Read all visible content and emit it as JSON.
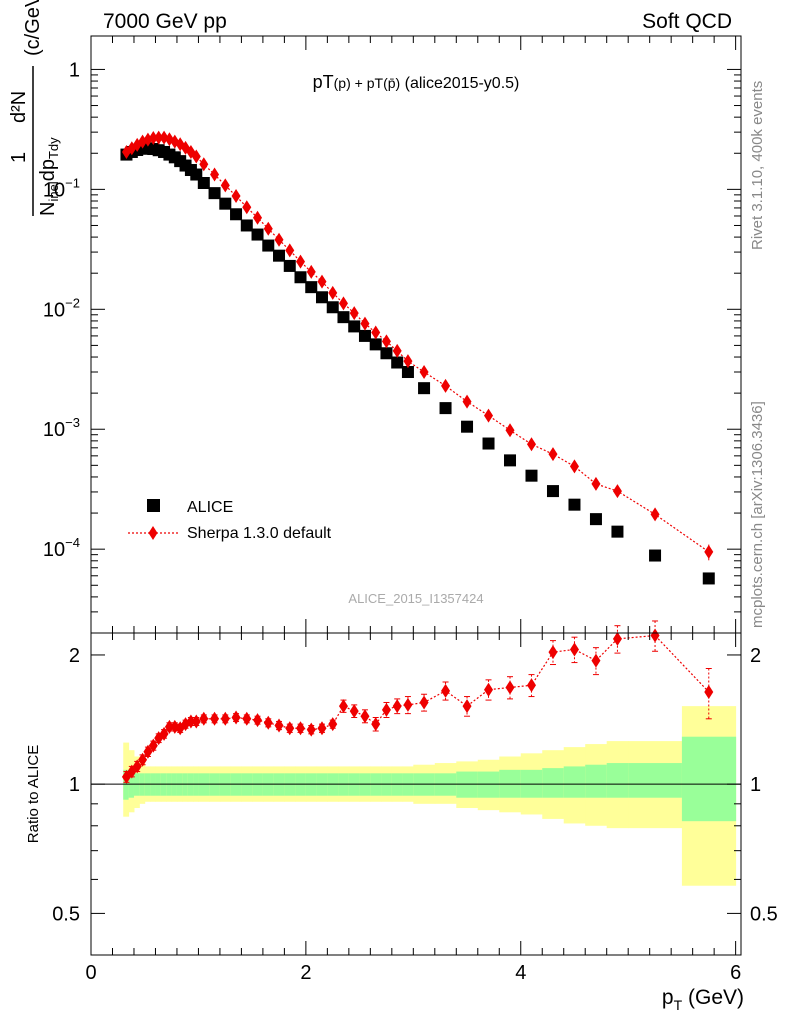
{
  "header": {
    "left": "7000 GeV pp",
    "right": "Soft QCD"
  },
  "side_labels": {
    "rivet": "Rivet 3.1.10,  400k events",
    "mcplots": "mcplots.cern.ch [arXiv:1306.3436]"
  },
  "chart_data": [
    {
      "type": "scatter",
      "title_main": "pT",
      "title_sub1": "(p)",
      "title_plus": " + pT",
      "title_sub2": "(p̄)",
      "title_tail": " (alice2015-y0.5)",
      "ylabel_frac_num": "1",
      "ylabel_frac_num2": "d²N",
      "ylabel_frac_den": "N",
      "ylabel_frac_den_sub": "inel",
      "ylabel_frac_den_tail": "dp",
      "ylabel_frac_den_tail_sub": "Tdy",
      "ylabel_unit": "(c/GeV)",
      "watermark": "ALICE_2015_I1357424",
      "xlim": [
        0,
        6.05
      ],
      "ylim": [
        2e-05,
        1.9
      ],
      "log_y": true,
      "yticks": [
        {
          "value": 1,
          "mantissa": "1",
          "exp": ""
        },
        {
          "value": 0.1,
          "mantissa": "10",
          "exp": "−1"
        },
        {
          "value": 0.01,
          "mantissa": "10",
          "exp": "−2"
        },
        {
          "value": 0.001,
          "mantissa": "10",
          "exp": "−3"
        },
        {
          "value": 0.0001,
          "mantissa": "10",
          "exp": "−4"
        }
      ],
      "legend": {
        "placement": "bottom-left",
        "entries": [
          "ALICE",
          "Sherpa 1.3.0 default"
        ]
      },
      "series": [
        {
          "name": "ALICE",
          "color": "#000000",
          "marker": "square",
          "x": [
            0.33,
            0.38,
            0.43,
            0.48,
            0.53,
            0.58,
            0.63,
            0.68,
            0.73,
            0.78,
            0.83,
            0.88,
            0.93,
            0.98,
            1.05,
            1.15,
            1.25,
            1.35,
            1.45,
            1.55,
            1.65,
            1.75,
            1.85,
            1.95,
            2.05,
            2.15,
            2.25,
            2.35,
            2.45,
            2.55,
            2.65,
            2.75,
            2.85,
            2.95,
            3.1,
            3.3,
            3.5,
            3.7,
            3.9,
            4.1,
            4.3,
            4.5,
            4.7,
            4.9,
            5.25,
            5.75
          ],
          "y": [
            0.195,
            0.205,
            0.213,
            0.218,
            0.22,
            0.217,
            0.212,
            0.205,
            0.195,
            0.185,
            0.172,
            0.158,
            0.145,
            0.133,
            0.113,
            0.093,
            0.076,
            0.062,
            0.05,
            0.042,
            0.034,
            0.028,
            0.023,
            0.0185,
            0.0153,
            0.0126,
            0.0104,
            0.0086,
            0.0072,
            0.006,
            0.0051,
            0.0043,
            0.0036,
            0.003,
            0.0022,
            0.0015,
            0.00105,
            0.00076,
            0.00055,
            0.00041,
            0.000305,
            0.000235,
            0.000178,
            0.00014,
            8.85e-05,
            5.7e-05
          ]
        },
        {
          "name": "Sherpa 1.3.0 default",
          "color": "#ee0000",
          "marker": "diamond",
          "line": "dotted",
          "x": [
            0.33,
            0.38,
            0.43,
            0.48,
            0.53,
            0.58,
            0.63,
            0.68,
            0.73,
            0.78,
            0.83,
            0.88,
            0.93,
            0.98,
            1.05,
            1.15,
            1.25,
            1.35,
            1.45,
            1.55,
            1.65,
            1.75,
            1.85,
            1.95,
            2.05,
            2.15,
            2.25,
            2.35,
            2.45,
            2.55,
            2.65,
            2.75,
            2.85,
            2.95,
            3.1,
            3.3,
            3.5,
            3.7,
            3.9,
            4.1,
            4.3,
            4.5,
            4.7,
            4.9,
            5.25,
            5.75
          ],
          "y": [
            0.205,
            0.22,
            0.235,
            0.25,
            0.26,
            0.268,
            0.27,
            0.27,
            0.262,
            0.25,
            0.238,
            0.222,
            0.205,
            0.188,
            0.162,
            0.133,
            0.108,
            0.088,
            0.071,
            0.058,
            0.047,
            0.038,
            0.031,
            0.025,
            0.0205,
            0.017,
            0.0137,
            0.0112,
            0.0093,
            0.0076,
            0.0064,
            0.0054,
            0.0045,
            0.0037,
            0.003,
            0.0023,
            0.0017,
            0.0013,
            0.00098,
            0.00075,
            0.00062,
            0.00049,
            0.00035,
            0.000305,
            0.000195,
            9.5e-05
          ],
          "yerr_rel": [
            0.02,
            0.02,
            0.02,
            0.02,
            0.02,
            0.02,
            0.02,
            0.02,
            0.02,
            0.02,
            0.02,
            0.02,
            0.02,
            0.02,
            0.02,
            0.02,
            0.02,
            0.02,
            0.02,
            0.02,
            0.02,
            0.02,
            0.02,
            0.02,
            0.02,
            0.02,
            0.02,
            0.02,
            0.02,
            0.03,
            0.03,
            0.03,
            0.03,
            0.03,
            0.03,
            0.04,
            0.04,
            0.05,
            0.05,
            0.05,
            0.06,
            0.06,
            0.07,
            0.07,
            0.08,
            0.15
          ]
        }
      ]
    },
    {
      "type": "scatter",
      "ylabel": "Ratio to ALICE",
      "xlabel_main": "p",
      "xlabel_sub": "T",
      "xlabel_unit": " (GeV)",
      "xlim": [
        0,
        6.05
      ],
      "ylim": [
        0.4,
        2.25
      ],
      "log_y": true,
      "yticks": [
        {
          "value": 2,
          "label": "2"
        },
        {
          "value": 1,
          "label": "1"
        },
        {
          "value": 0.5,
          "label": "0.5"
        }
      ],
      "xticks": [
        {
          "value": 0,
          "label": "0"
        },
        {
          "value": 2,
          "label": "2"
        },
        {
          "value": 4,
          "label": "4"
        },
        {
          "value": 6,
          "label": "6"
        }
      ],
      "bands": {
        "edges": [
          0.3,
          0.35,
          0.4,
          0.45,
          0.5,
          0.55,
          0.6,
          0.65,
          0.7,
          0.75,
          0.8,
          0.85,
          0.9,
          0.95,
          1.0,
          1.1,
          1.2,
          1.3,
          1.4,
          1.5,
          1.6,
          1.7,
          1.8,
          1.9,
          2.0,
          2.1,
          2.2,
          2.3,
          2.4,
          2.5,
          2.6,
          2.7,
          2.8,
          2.9,
          3.0,
          3.2,
          3.4,
          3.6,
          3.8,
          4.0,
          4.2,
          4.4,
          4.6,
          4.8,
          5.0,
          5.5,
          6.0
        ],
        "outer_lo": [
          0.84,
          0.86,
          0.88,
          0.9,
          0.91,
          0.91,
          0.91,
          0.91,
          0.91,
          0.91,
          0.91,
          0.91,
          0.91,
          0.91,
          0.91,
          0.91,
          0.91,
          0.91,
          0.91,
          0.91,
          0.91,
          0.91,
          0.91,
          0.91,
          0.91,
          0.91,
          0.91,
          0.91,
          0.91,
          0.91,
          0.91,
          0.91,
          0.91,
          0.91,
          0.9,
          0.9,
          0.88,
          0.87,
          0.86,
          0.85,
          0.83,
          0.81,
          0.8,
          0.79,
          0.79,
          0.58
        ],
        "outer_hi": [
          1.25,
          1.2,
          1.16,
          1.12,
          1.1,
          1.1,
          1.1,
          1.1,
          1.1,
          1.1,
          1.1,
          1.1,
          1.1,
          1.1,
          1.1,
          1.1,
          1.1,
          1.1,
          1.1,
          1.1,
          1.1,
          1.1,
          1.1,
          1.1,
          1.1,
          1.1,
          1.1,
          1.1,
          1.1,
          1.1,
          1.1,
          1.1,
          1.1,
          1.1,
          1.11,
          1.12,
          1.13,
          1.14,
          1.16,
          1.18,
          1.2,
          1.22,
          1.24,
          1.26,
          1.26,
          1.52
        ],
        "inner_lo": [
          0.92,
          0.93,
          0.94,
          0.94,
          0.94,
          0.94,
          0.94,
          0.94,
          0.94,
          0.94,
          0.94,
          0.94,
          0.94,
          0.94,
          0.94,
          0.94,
          0.94,
          0.94,
          0.94,
          0.94,
          0.94,
          0.94,
          0.94,
          0.94,
          0.94,
          0.94,
          0.94,
          0.94,
          0.94,
          0.94,
          0.94,
          0.94,
          0.94,
          0.94,
          0.94,
          0.94,
          0.93,
          0.93,
          0.93,
          0.93,
          0.93,
          0.93,
          0.93,
          0.93,
          0.93,
          0.82
        ],
        "inner_hi": [
          1.08,
          1.07,
          1.06,
          1.06,
          1.06,
          1.06,
          1.06,
          1.06,
          1.06,
          1.06,
          1.06,
          1.06,
          1.06,
          1.06,
          1.06,
          1.06,
          1.06,
          1.06,
          1.06,
          1.06,
          1.06,
          1.06,
          1.06,
          1.06,
          1.06,
          1.06,
          1.06,
          1.06,
          1.06,
          1.06,
          1.06,
          1.06,
          1.06,
          1.06,
          1.06,
          1.06,
          1.07,
          1.07,
          1.08,
          1.08,
          1.09,
          1.1,
          1.11,
          1.12,
          1.12,
          1.29
        ]
      },
      "series": [
        {
          "name": "Sherpa 1.3.0 default",
          "color": "#ee0000",
          "marker": "diamond",
          "line": "dotted",
          "x": [
            0.33,
            0.38,
            0.43,
            0.48,
            0.53,
            0.58,
            0.63,
            0.68,
            0.73,
            0.78,
            0.83,
            0.88,
            0.93,
            0.98,
            1.05,
            1.15,
            1.25,
            1.35,
            1.45,
            1.55,
            1.65,
            1.75,
            1.85,
            1.95,
            2.05,
            2.15,
            2.25,
            2.35,
            2.45,
            2.55,
            2.65,
            2.75,
            2.85,
            2.95,
            3.1,
            3.3,
            3.5,
            3.7,
            3.9,
            4.1,
            4.3,
            4.5,
            4.7,
            4.9,
            5.25,
            5.75
          ],
          "y": [
            1.04,
            1.07,
            1.1,
            1.14,
            1.19,
            1.23,
            1.28,
            1.31,
            1.36,
            1.36,
            1.35,
            1.38,
            1.4,
            1.4,
            1.42,
            1.42,
            1.42,
            1.43,
            1.42,
            1.41,
            1.39,
            1.37,
            1.35,
            1.35,
            1.34,
            1.35,
            1.38,
            1.52,
            1.48,
            1.44,
            1.38,
            1.49,
            1.52,
            1.53,
            1.55,
            1.65,
            1.52,
            1.66,
            1.68,
            1.7,
            2.03,
            2.06,
            1.94,
            2.18,
            2.22,
            1.64
          ],
          "yerr": [
            0.03,
            0.03,
            0.03,
            0.03,
            0.03,
            0.03,
            0.03,
            0.03,
            0.03,
            0.03,
            0.03,
            0.03,
            0.03,
            0.03,
            0.03,
            0.03,
            0.03,
            0.03,
            0.03,
            0.03,
            0.03,
            0.03,
            0.03,
            0.03,
            0.03,
            0.03,
            0.03,
            0.05,
            0.05,
            0.05,
            0.05,
            0.06,
            0.06,
            0.07,
            0.07,
            0.08,
            0.08,
            0.09,
            0.1,
            0.1,
            0.13,
            0.14,
            0.14,
            0.16,
            0.18,
            0.22
          ]
        }
      ],
      "reference_line": 1
    }
  ]
}
